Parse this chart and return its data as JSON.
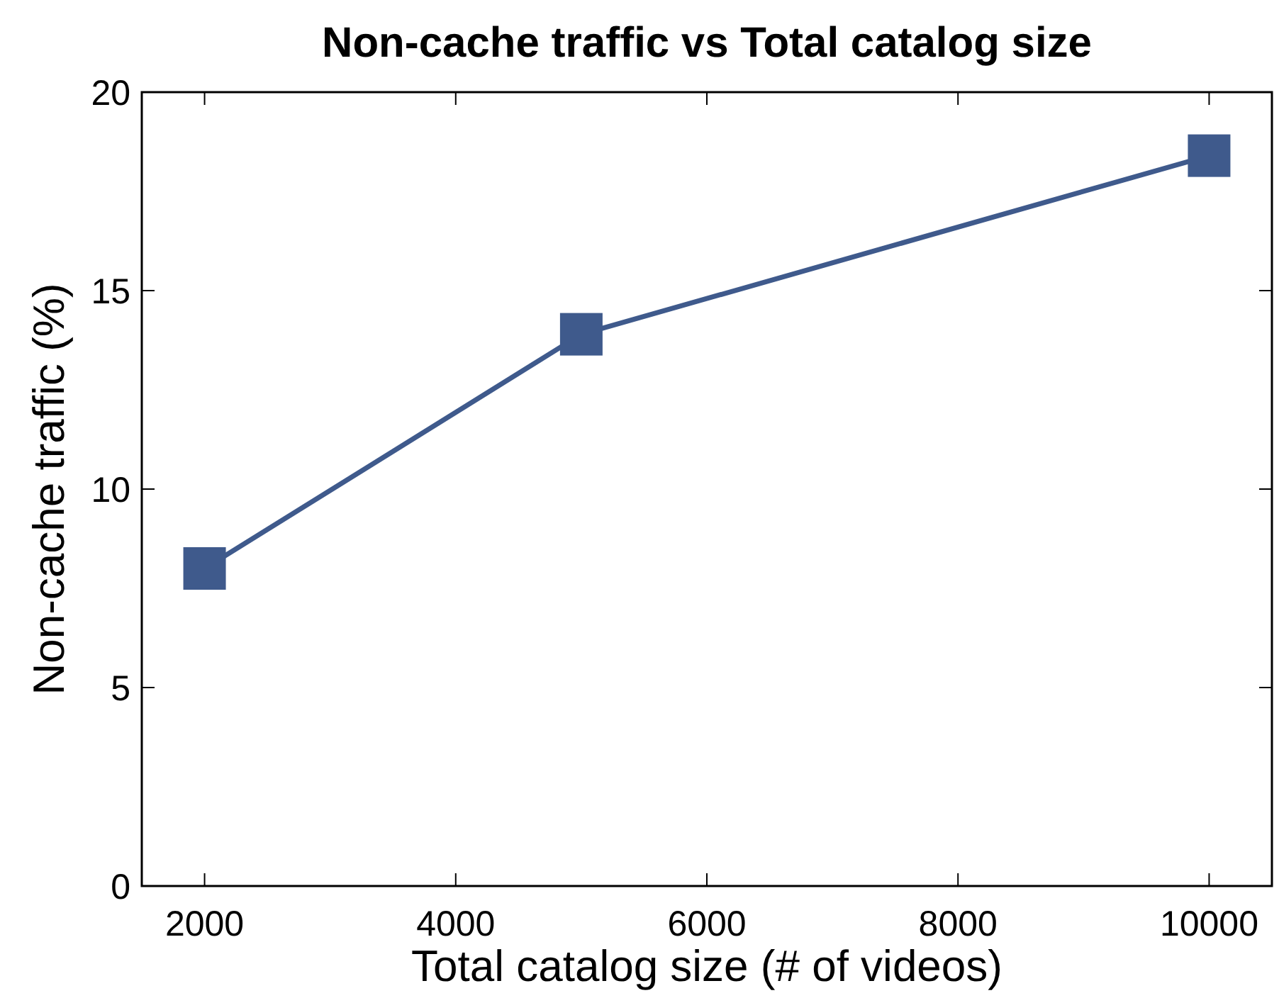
{
  "chart_data": {
    "type": "line",
    "title": "Non-cache traffic vs Total catalog size",
    "xlabel": "Total catalog size (# of videos)",
    "ylabel": "Non-cache traffic (%)",
    "x": [
      2000,
      5000,
      10000
    ],
    "series": [
      {
        "color": "#3f5a8c",
        "values": [
          8.0,
          13.9,
          18.4
        ]
      }
    ],
    "xlim": [
      1500,
      10500
    ],
    "xticks": [
      2000,
      4000,
      6000,
      8000,
      10000
    ],
    "ylim": [
      0,
      20
    ],
    "yticks": [
      0,
      5,
      10,
      15,
      20
    ],
    "grid": false,
    "marker": "square",
    "line_style": "solid"
  }
}
